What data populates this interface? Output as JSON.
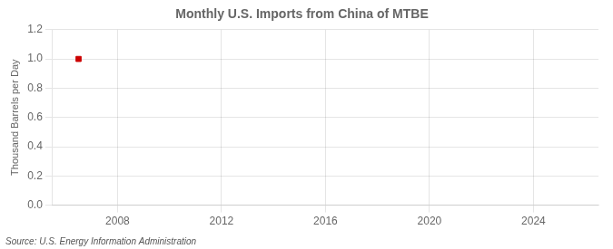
{
  "chart_data": {
    "type": "scatter",
    "title": "Monthly U.S. Imports from China of MTBE",
    "ylabel": "Thousand Barrels per Day",
    "source": "Source: U.S. Energy Information Administration",
    "x": [
      2006.5
    ],
    "values": [
      1.0
    ],
    "color": "#CC0000",
    "marker": "square",
    "xlim": [
      2005.5,
      2026.5
    ],
    "xticks": [
      2008,
      2012,
      2016,
      2020,
      2024
    ],
    "ylim": [
      0.0,
      1.2
    ],
    "yticks": [
      {
        "value": 0.0,
        "label": "0.0"
      },
      0.2,
      0.4,
      0.6,
      0.8,
      {
        "value": 1.0,
        "label": "1.0"
      },
      1.2
    ],
    "grid": true
  }
}
